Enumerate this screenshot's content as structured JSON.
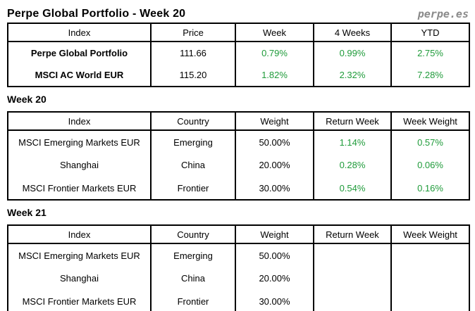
{
  "page": {
    "title": "Perpe Global Portfolio - Week 20",
    "logo": "perpe.es"
  },
  "colors": {
    "positive_green": "#1f9b3a",
    "logo_gray": "#8a8a8a",
    "border_black": "#000000"
  },
  "summary_table": {
    "headers": [
      "Index",
      "Price",
      "Week",
      "4 Weeks",
      "YTD"
    ],
    "rows": [
      {
        "index": "Perpe Global Portfolio",
        "price": "111.66",
        "week": "0.79%",
        "four_weeks": "0.99%",
        "ytd": "2.75%"
      },
      {
        "index": "MSCI AC World EUR",
        "price": "115.20",
        "week": "1.82%",
        "four_weeks": "2.32%",
        "ytd": "7.28%"
      }
    ]
  },
  "week20": {
    "heading": "Week 20",
    "headers": [
      "Index",
      "Country",
      "Weight",
      "Return Week",
      "Week Weight"
    ],
    "rows": [
      {
        "index": "MSCI Emerging Markets EUR",
        "country": "Emerging",
        "weight": "50.00%",
        "return_week": "1.14%",
        "week_weight": "0.57%"
      },
      {
        "index": "Shanghai",
        "country": "China",
        "weight": "20.00%",
        "return_week": "0.28%",
        "week_weight": "0.06%"
      },
      {
        "index": "MSCI Frontier Markets EUR",
        "country": "Frontier",
        "weight": "30.00%",
        "return_week": "0.54%",
        "week_weight": "0.16%"
      }
    ]
  },
  "week21": {
    "heading": "Week 21",
    "headers": [
      "Index",
      "Country",
      "Weight",
      "Return Week",
      "Week Weight"
    ],
    "rows": [
      {
        "index": "MSCI Emerging Markets EUR",
        "country": "Emerging",
        "weight": "50.00%",
        "return_week": "",
        "week_weight": ""
      },
      {
        "index": "Shanghai",
        "country": "China",
        "weight": "20.00%",
        "return_week": "",
        "week_weight": ""
      },
      {
        "index": "MSCI Frontier Markets EUR",
        "country": "Frontier",
        "weight": "30.00%",
        "return_week": "",
        "week_weight": ""
      }
    ]
  }
}
